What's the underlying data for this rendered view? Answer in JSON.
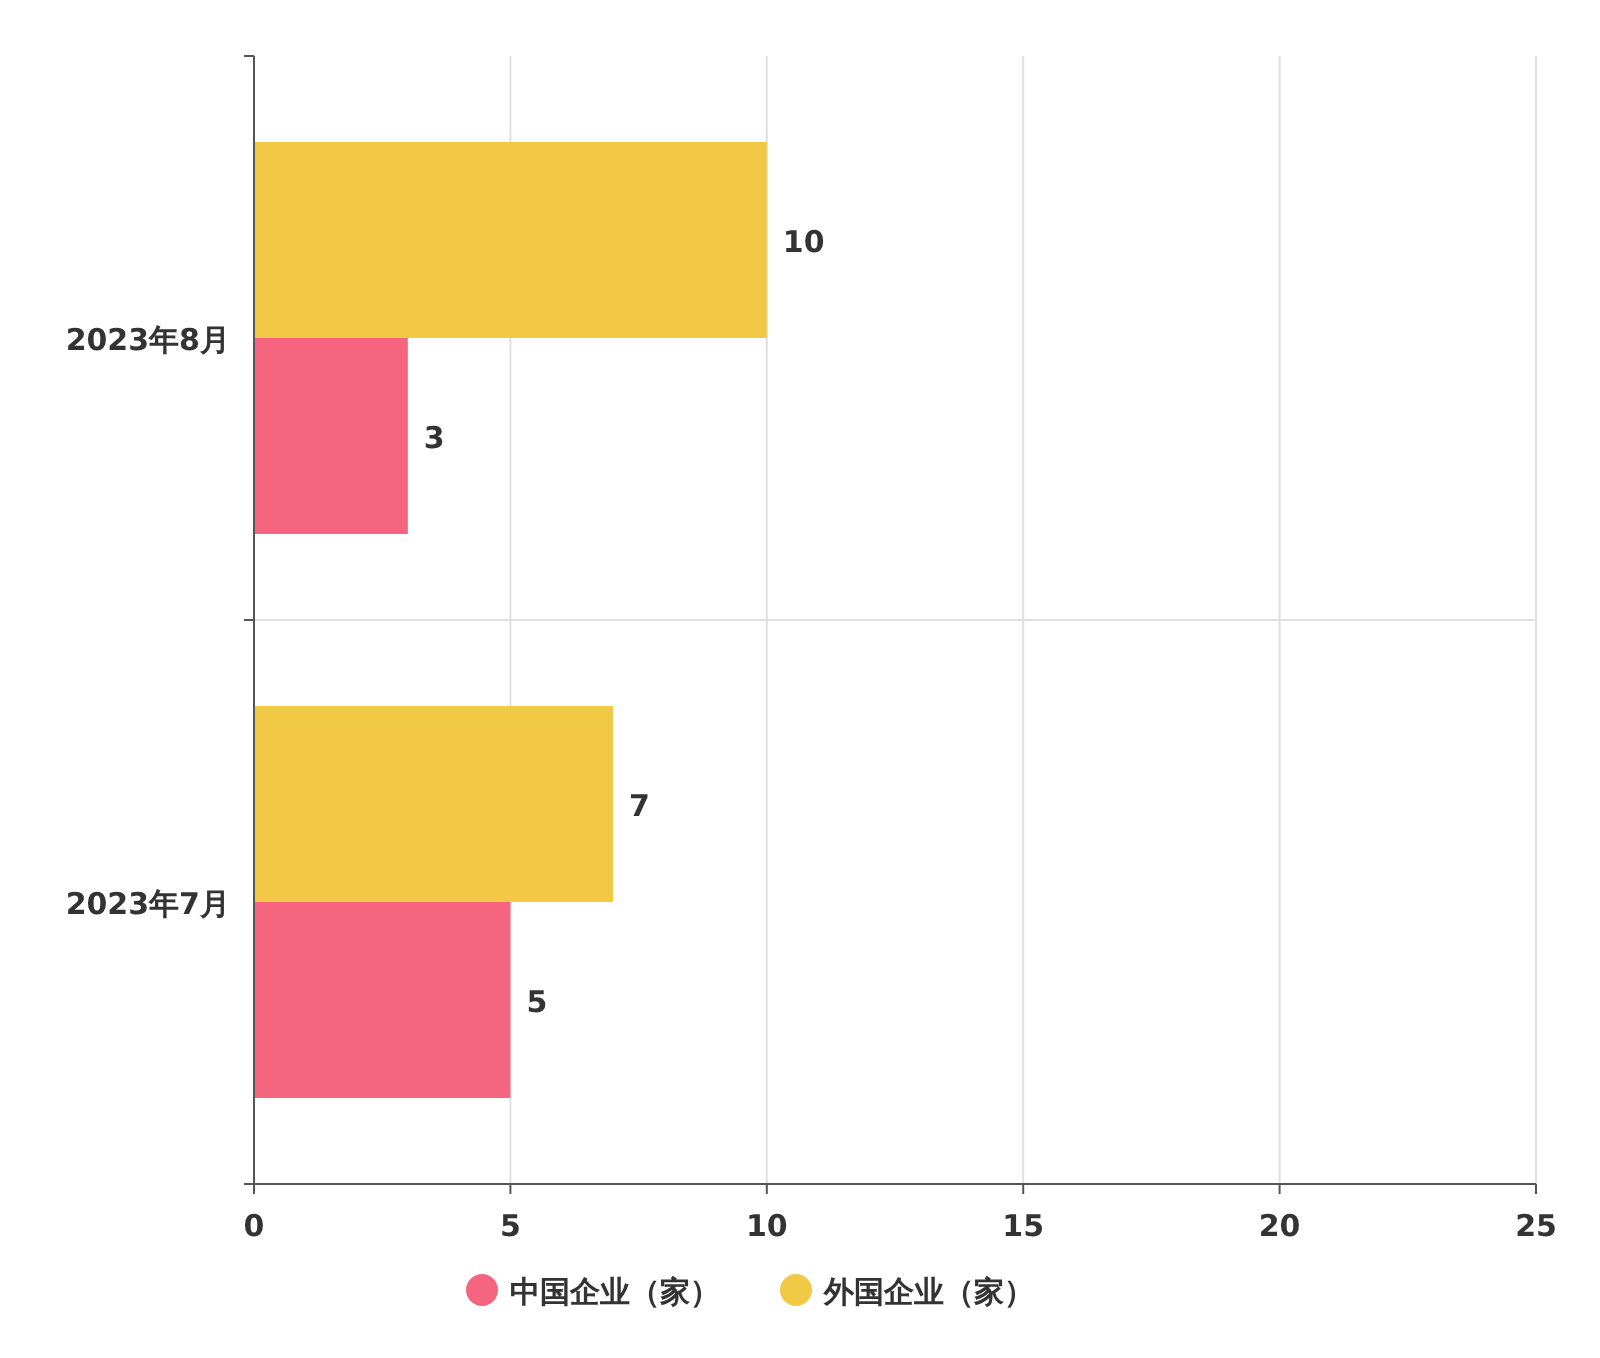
{
  "chart_data": {
    "type": "bar",
    "orientation": "horizontal",
    "categories": [
      "2023年8月",
      "2023年7月"
    ],
    "series": [
      {
        "name": "中国企业（家）",
        "color": "#f5657f",
        "values": [
          3,
          5
        ]
      },
      {
        "name": "外国企业（家）",
        "color": "#f2c944",
        "values": [
          10,
          7
        ]
      }
    ],
    "xlim": [
      0,
      25
    ],
    "xticks": [
      0,
      5,
      10,
      15,
      20,
      25
    ],
    "grid": true,
    "legend": "bottom",
    "data_labels": true
  }
}
